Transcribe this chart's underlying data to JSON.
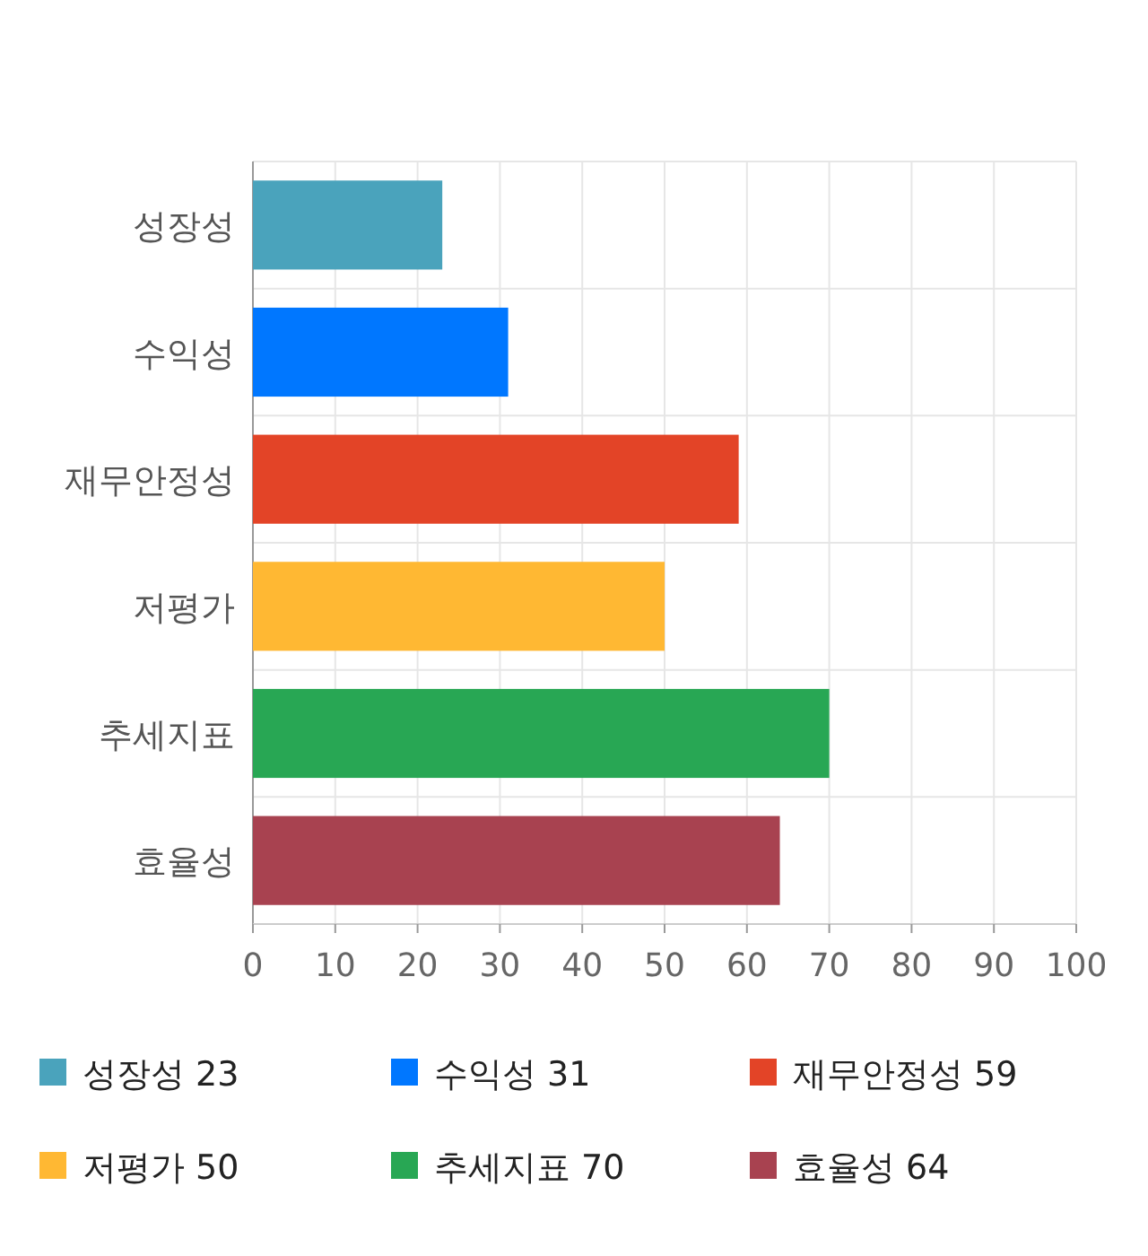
{
  "chart_data": {
    "type": "bar",
    "orientation": "horizontal",
    "categories": [
      "성장성",
      "수익성",
      "재무안정성",
      "저평가",
      "추세지표",
      "효율성"
    ],
    "series": [
      {
        "name": "성장성 23",
        "color": "#4aa3bc",
        "values": [
          23,
          null,
          null,
          null,
          null,
          null
        ]
      },
      {
        "name": "수익성 31",
        "color": "#0077ff",
        "values": [
          null,
          31,
          null,
          null,
          null,
          null
        ]
      },
      {
        "name": "재무안정성 59",
        "color": "#e34427",
        "values": [
          null,
          null,
          59,
          null,
          null,
          null
        ]
      },
      {
        "name": "저평가 50",
        "color": "#ffb833",
        "values": [
          null,
          null,
          null,
          50,
          null,
          null
        ]
      },
      {
        "name": "추세지표 70",
        "color": "#28a754",
        "values": [
          null,
          null,
          null,
          null,
          70,
          null
        ]
      },
      {
        "name": "효율성 64",
        "color": "#a84250",
        "values": [
          null,
          null,
          null,
          null,
          null,
          64
        ]
      }
    ],
    "xlim": [
      0,
      100
    ],
    "xticks": [
      0,
      10,
      20,
      30,
      40,
      50,
      60,
      70,
      80,
      90,
      100
    ],
    "grid": true,
    "legend": "bottom"
  }
}
